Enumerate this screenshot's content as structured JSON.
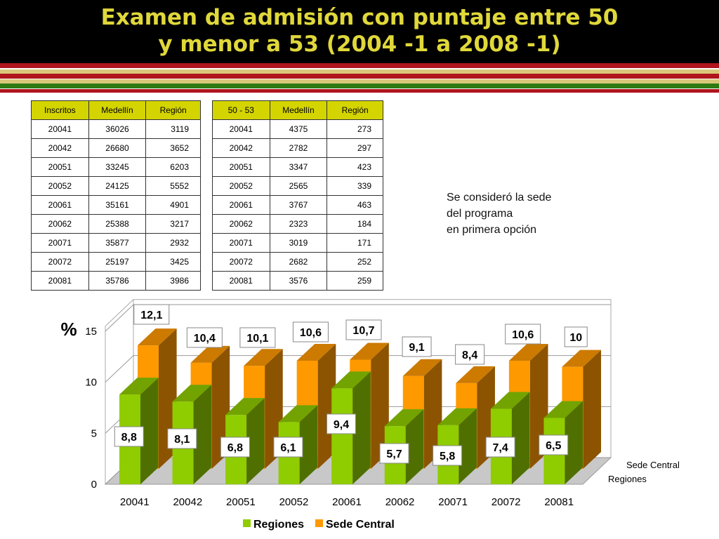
{
  "header": {
    "title_line1": "Examen de admisión con puntaje entre 50",
    "title_line2": "y menor a 53 (2004 -1 a 2008 -1)"
  },
  "colors": {
    "header_bg": "#000000",
    "title": "#e0d83a",
    "stripe_red": "#b0141c",
    "stripe_tan": "#d9c87a",
    "stripe_green": "#2f7a12",
    "table_header": "#d4d400",
    "regiones": "#8fcc00",
    "sede_central": "#ff9900"
  },
  "table_inscritos": {
    "headers": [
      "Inscritos",
      "Medellín",
      "Región"
    ],
    "rows": [
      [
        "20041",
        "36026",
        "3119"
      ],
      [
        "20042",
        "26680",
        "3652"
      ],
      [
        "20051",
        "33245",
        "6203"
      ],
      [
        "20052",
        "24125",
        "5552"
      ],
      [
        "20061",
        "35161",
        "4901"
      ],
      [
        "20062",
        "25388",
        "3217"
      ],
      [
        "20071",
        "35877",
        "2932"
      ],
      [
        "20072",
        "25197",
        "3425"
      ],
      [
        "20081",
        "35786",
        "3986"
      ]
    ]
  },
  "table_5053": {
    "headers": [
      "50 - 53",
      "Medellín",
      "Región"
    ],
    "rows": [
      [
        "20041",
        "4375",
        "273"
      ],
      [
        "20042",
        "2782",
        "297"
      ],
      [
        "20051",
        "3347",
        "423"
      ],
      [
        "20052",
        "2565",
        "339"
      ],
      [
        "20061",
        "3767",
        "463"
      ],
      [
        "20062",
        "2323",
        "184"
      ],
      [
        "20071",
        "3019",
        "171"
      ],
      [
        "20072",
        "2682",
        "252"
      ],
      [
        "20081",
        "3576",
        "259"
      ]
    ]
  },
  "note": {
    "line1": "Se consideró la sede",
    "line2": "del programa",
    "line3": "en primera opción"
  },
  "chart_data": {
    "type": "bar",
    "title": "",
    "ylabel": "%",
    "ylim": [
      0,
      15
    ],
    "yticks": [
      0,
      5,
      10,
      15
    ],
    "categories": [
      "20041",
      "20042",
      "20051",
      "20052",
      "20061",
      "20062",
      "20071",
      "20072",
      "20081"
    ],
    "series": [
      {
        "name": "Regiones",
        "values": [
          8.8,
          8.1,
          6.8,
          6.1,
          9.4,
          5.7,
          5.8,
          7.4,
          6.5
        ],
        "labels": [
          "8,8",
          "8,1",
          "6,8",
          "6,1",
          "9,4",
          "5,7",
          "5,8",
          "7,4",
          "6,5"
        ]
      },
      {
        "name": "Sede Central",
        "values": [
          12.1,
          10.4,
          10.1,
          10.6,
          10.7,
          9.1,
          8.4,
          10.6,
          10
        ],
        "labels": [
          "12,1",
          "10,4",
          "10,1",
          "10,6",
          "10,7",
          "9,1",
          "8,4",
          "10,6",
          "10"
        ]
      }
    ],
    "depth_labels": [
      "Sede Central",
      "Regiones"
    ],
    "grid": true,
    "legend_position": "bottom",
    "view": "3d"
  }
}
